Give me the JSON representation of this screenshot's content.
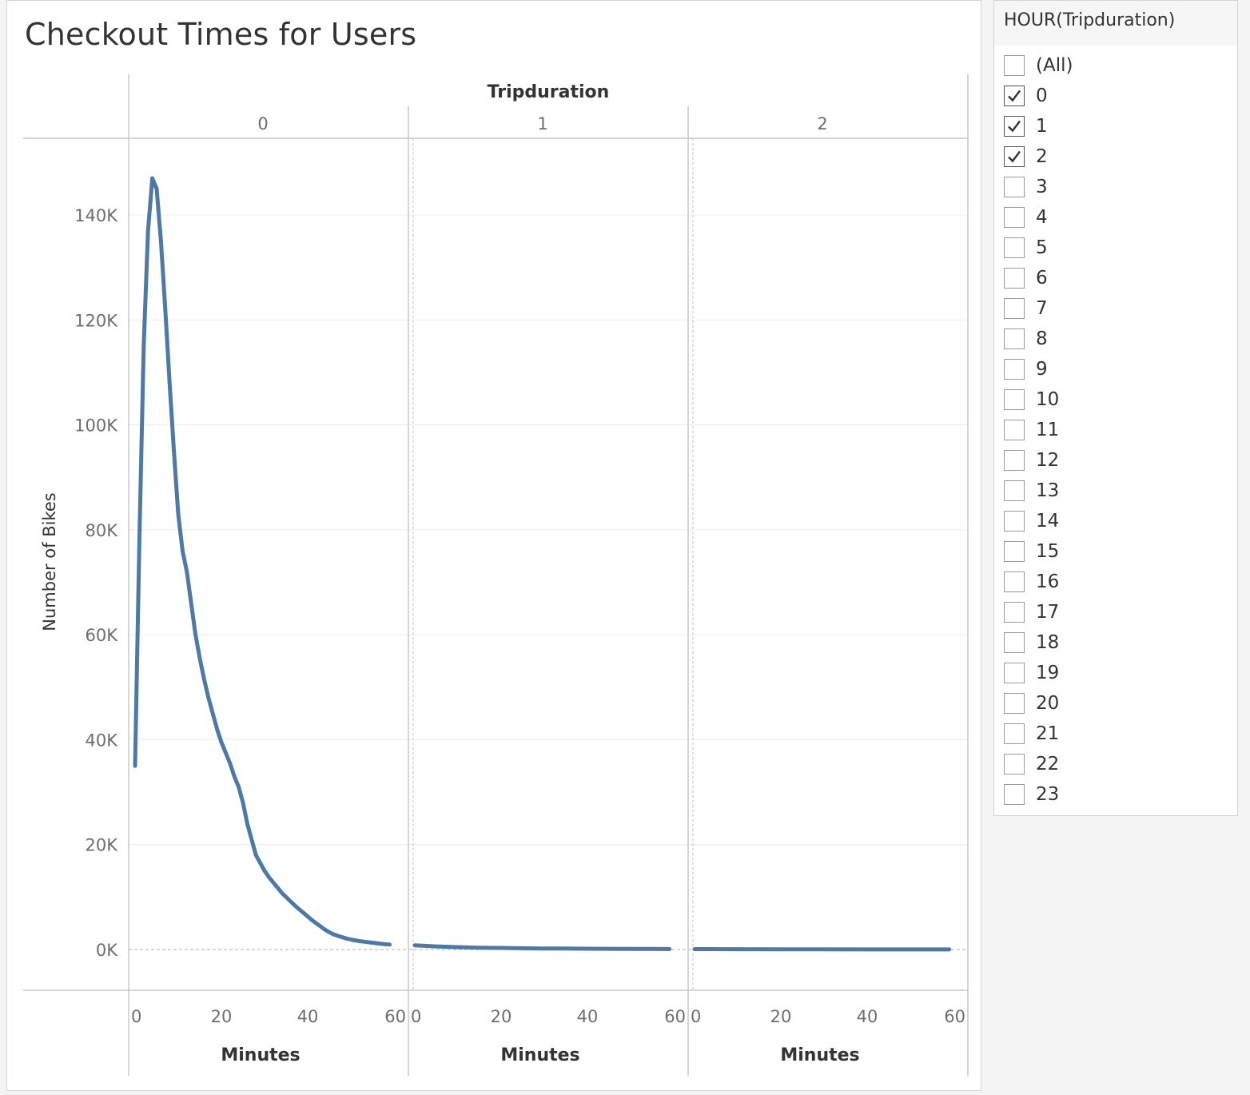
{
  "chart_data": {
    "type": "line",
    "title": "Checkout Times for Users",
    "column_header_title": "Tripduration",
    "ylabel": "Number of Bikes",
    "xlabel": "Minutes",
    "ylim": [
      0,
      152000
    ],
    "y_ticks": [
      0,
      20000,
      40000,
      60000,
      80000,
      100000,
      120000,
      140000
    ],
    "y_tick_labels": [
      "0K",
      "20K",
      "40K",
      "60K",
      "80K",
      "100K",
      "120K",
      "140K"
    ],
    "x_ticks": [
      0,
      20,
      40,
      60
    ],
    "x_tick_labels": [
      "0",
      "20",
      "40",
      "60"
    ],
    "color": "#4e79a7",
    "panels": [
      {
        "header": "0",
        "xlim": [
          -1.5,
          62
        ],
        "points": [
          [
            0,
            35000
          ],
          [
            1,
            78000
          ],
          [
            2,
            115000
          ],
          [
            3,
            137000
          ],
          [
            4,
            147000
          ],
          [
            5,
            145000
          ],
          [
            6,
            135000
          ],
          [
            7,
            122000
          ],
          [
            8,
            108000
          ],
          [
            9,
            95000
          ],
          [
            10,
            83000
          ],
          [
            11,
            76000
          ],
          [
            12,
            72000
          ],
          [
            13,
            66000
          ],
          [
            14,
            60000
          ],
          [
            15,
            55500
          ],
          [
            16,
            51500
          ],
          [
            17,
            48000
          ],
          [
            18,
            45000
          ],
          [
            19,
            42000
          ],
          [
            20,
            39500
          ],
          [
            21,
            37500
          ],
          [
            22,
            35500
          ],
          [
            23,
            33000
          ],
          [
            24,
            31000
          ],
          [
            25,
            28000
          ],
          [
            26,
            24000
          ],
          [
            27,
            21000
          ],
          [
            28,
            18000
          ],
          [
            29,
            16500
          ],
          [
            30,
            15000
          ],
          [
            31,
            13800
          ],
          [
            32,
            12800
          ],
          [
            33,
            11800
          ],
          [
            34,
            10800
          ],
          [
            35,
            10000
          ],
          [
            36,
            9200
          ],
          [
            37,
            8400
          ],
          [
            38,
            7700
          ],
          [
            39,
            7000
          ],
          [
            40,
            6300
          ],
          [
            41,
            5600
          ],
          [
            42,
            5000
          ],
          [
            43,
            4400
          ],
          [
            44,
            3800
          ],
          [
            45,
            3300
          ],
          [
            46,
            2900
          ],
          [
            47,
            2600
          ],
          [
            48,
            2350
          ],
          [
            49,
            2100
          ],
          [
            50,
            1900
          ],
          [
            51,
            1750
          ],
          [
            52,
            1600
          ],
          [
            53,
            1500
          ],
          [
            54,
            1400
          ],
          [
            55,
            1300
          ],
          [
            56,
            1200
          ],
          [
            57,
            1100
          ],
          [
            58,
            1000
          ],
          [
            59,
            950
          ]
        ]
      },
      {
        "header": "1",
        "xlim": [
          -1.5,
          62
        ],
        "points": [
          [
            0,
            800
          ],
          [
            5,
            600
          ],
          [
            10,
            450
          ],
          [
            15,
            350
          ],
          [
            20,
            300
          ],
          [
            25,
            250
          ],
          [
            30,
            200
          ],
          [
            35,
            180
          ],
          [
            40,
            150
          ],
          [
            45,
            130
          ],
          [
            50,
            120
          ],
          [
            55,
            100
          ],
          [
            59,
            90
          ]
        ]
      },
      {
        "header": "2",
        "xlim": [
          -1.5,
          62
        ],
        "points": [
          [
            0,
            80
          ],
          [
            10,
            60
          ],
          [
            20,
            40
          ],
          [
            30,
            30
          ],
          [
            40,
            20
          ],
          [
            50,
            15
          ],
          [
            59,
            10
          ]
        ]
      }
    ]
  },
  "filter": {
    "title": "HOUR(Tripduration)",
    "items": [
      {
        "label": "(All)",
        "checked": false
      },
      {
        "label": "0",
        "checked": true
      },
      {
        "label": "1",
        "checked": true
      },
      {
        "label": "2",
        "checked": true
      },
      {
        "label": "3",
        "checked": false
      },
      {
        "label": "4",
        "checked": false
      },
      {
        "label": "5",
        "checked": false
      },
      {
        "label": "6",
        "checked": false
      },
      {
        "label": "7",
        "checked": false
      },
      {
        "label": "8",
        "checked": false
      },
      {
        "label": "9",
        "checked": false
      },
      {
        "label": "10",
        "checked": false
      },
      {
        "label": "11",
        "checked": false
      },
      {
        "label": "12",
        "checked": false
      },
      {
        "label": "13",
        "checked": false
      },
      {
        "label": "14",
        "checked": false
      },
      {
        "label": "15",
        "checked": false
      },
      {
        "label": "16",
        "checked": false
      },
      {
        "label": "17",
        "checked": false
      },
      {
        "label": "18",
        "checked": false
      },
      {
        "label": "19",
        "checked": false
      },
      {
        "label": "20",
        "checked": false
      },
      {
        "label": "21",
        "checked": false
      },
      {
        "label": "22",
        "checked": false
      },
      {
        "label": "23",
        "checked": false
      }
    ]
  }
}
